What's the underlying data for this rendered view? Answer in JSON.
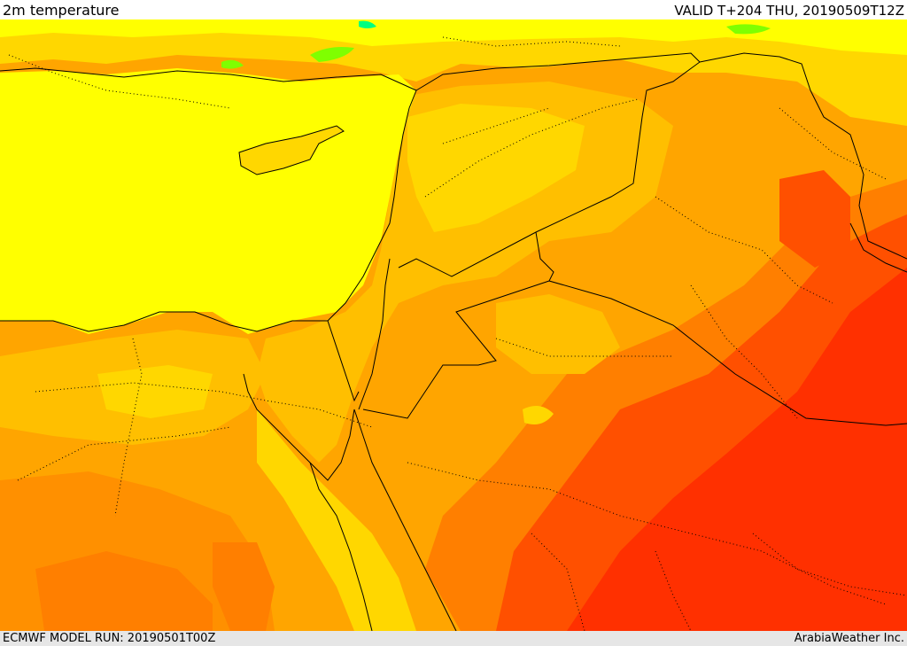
{
  "header": {
    "title": "2m temperature",
    "valid_time": "VALID T+204 THU, 20190509T12Z"
  },
  "footer": {
    "model_run": "ECMWF MODEL RUN: 20190501T00Z",
    "credit": "ArabiaWeather Inc."
  },
  "colors": {
    "sea_yellow": "#ffff00",
    "gold": "#ffd700",
    "light_orange": "#ffbf00",
    "orange": "#ffa500",
    "dark_orange": "#ff7f00",
    "red_orange": "#ff5000",
    "red": "#ff2000",
    "green": "#7fff00",
    "bright_green": "#00ff7f",
    "border": "#000000"
  }
}
